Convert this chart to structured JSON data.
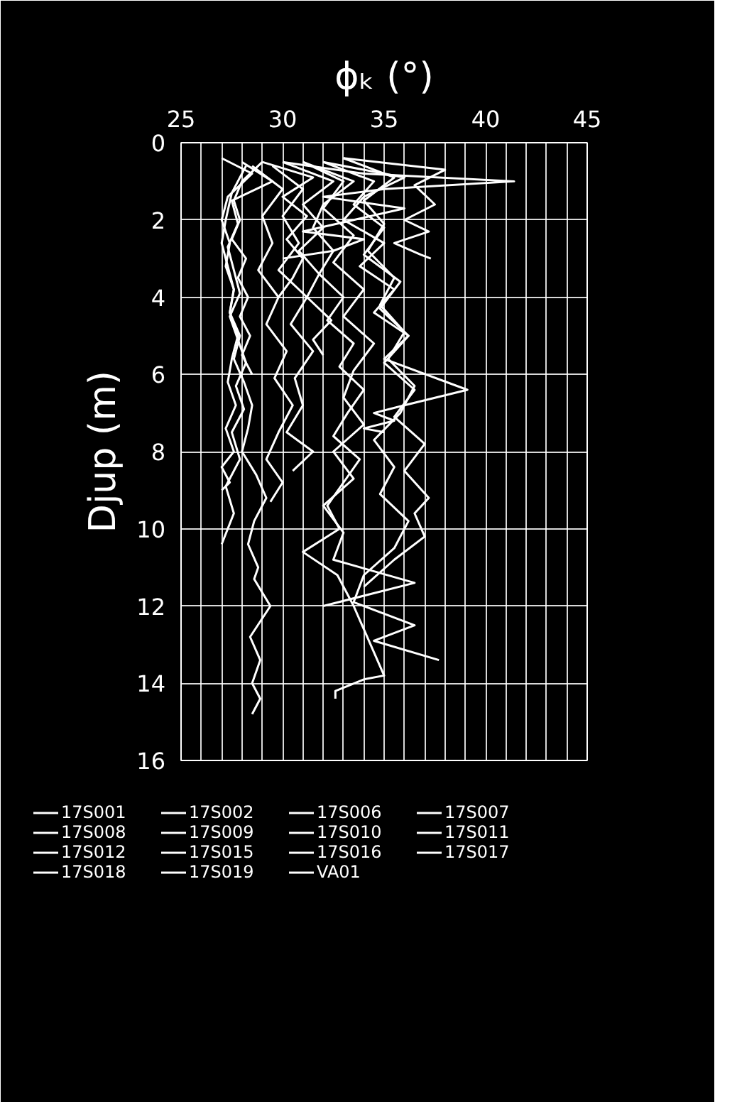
{
  "chart_data": {
    "type": "line",
    "xlabel": "ϕₖ (°)",
    "ylabel": "Djup (m)",
    "xlim": [
      25,
      45
    ],
    "xticks": [
      25,
      {
        "value": 26,
        "label": null
      },
      {
        "value": 27,
        "label": null
      },
      {
        "value": 28,
        "label": null
      },
      {
        "value": 29,
        "label": null
      },
      30,
      {
        "value": 31,
        "label": null
      },
      {
        "value": 32,
        "label": null
      },
      {
        "value": 33,
        "label": null
      },
      {
        "value": 34,
        "label": null
      },
      35,
      {
        "value": 36,
        "label": null
      },
      {
        "value": 37,
        "label": null
      },
      {
        "value": 38,
        "label": null
      },
      {
        "value": 39,
        "label": null
      },
      40,
      {
        "value": 41,
        "label": null
      },
      {
        "value": 42,
        "label": null
      },
      {
        "value": 43,
        "label": null
      },
      {
        "value": 44,
        "label": null
      },
      45
    ],
    "ylim": [
      16,
      0
    ],
    "yticks": [
      0,
      2,
      4,
      6,
      8,
      10,
      12,
      14,
      16
    ],
    "grid": true,
    "legend": "bottom",
    "line_style": "solid",
    "series": [
      {
        "name": "17S001",
        "color": "#ffffff",
        "x": [
          27.0,
          28.5,
          27.3,
          27.0,
          27.4,
          27.2,
          27.6,
          27.4,
          27.8,
          27.5,
          27.3,
          27.7,
          27.2,
          27.6,
          27.0,
          27.4,
          27.0
        ],
        "values": [
          0.4,
          0.8,
          1.4,
          2.0,
          2.6,
          3.2,
          3.8,
          4.4,
          5.0,
          5.6,
          6.2,
          6.8,
          7.4,
          8.0,
          8.4,
          8.8,
          9.0
        ]
      },
      {
        "name": "17S002",
        "color": "#ffffff",
        "x": [
          28.0,
          29.5,
          27.5,
          27.8,
          27.3,
          27.6,
          27.9,
          27.4,
          27.8,
          28.2,
          27.7,
          28.1,
          27.5,
          27.9,
          27.2,
          27.6,
          27.0
        ],
        "values": [
          0.5,
          1.0,
          1.5,
          2.1,
          2.7,
          3.3,
          3.9,
          4.5,
          5.1,
          5.7,
          6.3,
          6.9,
          7.5,
          8.2,
          8.9,
          9.6,
          10.4
        ]
      },
      {
        "name": "17S006",
        "color": "#ffffff",
        "x": [
          28.2,
          27.5,
          27.2,
          27.0,
          27.3,
          27.6,
          27.4,
          27.9,
          27.6,
          28.1,
          28.5,
          28.3,
          28.0,
          28.7,
          29.2,
          28.6,
          28.3,
          28.8,
          28.6,
          29.4,
          28.4,
          28.9,
          28.5,
          28.9,
          28.5
        ],
        "values": [
          0.6,
          1.3,
          2.0,
          2.6,
          3.2,
          3.8,
          4.4,
          5.0,
          5.6,
          6.2,
          6.8,
          7.4,
          8.0,
          8.6,
          9.2,
          9.8,
          10.4,
          11.0,
          11.3,
          12.0,
          12.8,
          13.4,
          14.0,
          14.4,
          14.8
        ]
      },
      {
        "name": "17S007",
        "color": "#ffffff",
        "x": [
          31.0,
          33.5,
          32.0,
          31.5,
          32.5,
          31.8,
          33.0,
          32.2,
          33.5,
          32.8,
          34.0,
          33.2,
          32.5,
          33.8,
          33.0,
          32.2,
          32.8,
          31.0,
          32.7,
          33.5,
          35.0,
          34.0,
          32.6,
          32.6
        ],
        "values": [
          0.5,
          1.0,
          1.6,
          2.2,
          2.8,
          3.4,
          4.0,
          4.6,
          5.2,
          5.8,
          6.4,
          7.0,
          7.6,
          8.2,
          8.8,
          9.4,
          10.0,
          10.6,
          11.2,
          12.0,
          13.8,
          13.9,
          14.2,
          14.4
        ]
      },
      {
        "name": "17S008",
        "color": "#ffffff",
        "x": [
          33.0,
          35.5,
          34.0,
          35.0,
          34.2,
          35.5,
          34.8,
          36.0,
          35.2,
          36.5,
          35.8,
          34.5,
          35.5,
          34.8,
          36.2,
          35.5,
          34.0,
          33.5,
          36.5,
          34.5,
          37.7
        ],
        "values": [
          0.4,
          0.9,
          1.5,
          2.1,
          2.8,
          3.5,
          4.2,
          4.9,
          5.6,
          6.3,
          7.0,
          7.7,
          8.4,
          9.1,
          9.8,
          10.5,
          11.2,
          11.9,
          12.5,
          12.9,
          13.4
        ]
      },
      {
        "name": "17S009",
        "color": "#ffffff",
        "x": [
          30.0,
          34.0,
          41.4,
          35.0,
          32.0,
          36.0,
          33.5,
          31.0,
          34.0,
          32.5,
          30.0
        ],
        "values": [
          0.5,
          0.8,
          1.0,
          1.2,
          1.4,
          1.7,
          2.0,
          2.3,
          2.5,
          2.8,
          3.0
        ]
      },
      {
        "name": "17S010",
        "color": "#ffffff",
        "x": [
          33.0,
          38.0,
          36.5,
          37.5,
          36.0,
          37.2,
          35.5,
          36.8,
          37.3
        ],
        "values": [
          0.4,
          0.7,
          1.1,
          1.6,
          2.0,
          2.3,
          2.6,
          2.9,
          3.0
        ]
      },
      {
        "name": "17S011",
        "color": "#ffffff",
        "x": [
          29.0,
          28.0,
          27.6,
          27.9,
          27.5,
          28.2,
          27.8,
          28.3,
          27.9,
          28.4,
          28.0,
          28.5
        ],
        "values": [
          0.5,
          1.0,
          1.5,
          2.0,
          2.5,
          3.0,
          3.5,
          4.0,
          4.5,
          5.0,
          5.5,
          6.0
        ]
      },
      {
        "name": "17S012",
        "color": "#ffffff",
        "x": [
          32.0,
          36.0,
          34.0,
          33.0,
          35.0,
          33.8,
          35.5,
          34.5,
          36.2,
          35.0,
          39.1,
          36.0,
          34.5,
          35.5,
          34.0,
          35.0
        ],
        "values": [
          0.5,
          0.9,
          1.4,
          2.0,
          2.6,
          3.2,
          3.8,
          4.4,
          5.0,
          5.6,
          6.4,
          6.8,
          7.0,
          7.2,
          7.4,
          7.5
        ]
      },
      {
        "name": "17S015",
        "color": "#ffffff",
        "x": [
          28.5,
          30.0,
          29.0,
          29.5,
          28.8,
          29.8,
          29.2,
          30.2,
          29.6,
          30.5,
          29.8,
          29.2,
          30.0,
          29.4
        ],
        "values": [
          0.6,
          1.2,
          1.9,
          2.6,
          3.3,
          4.0,
          4.7,
          5.4,
          6.1,
          6.8,
          7.5,
          8.2,
          8.8,
          9.3
        ]
      },
      {
        "name": "17S016",
        "color": "#ffffff",
        "x": [
          32.0,
          34.5,
          33.5,
          35.0,
          34.0,
          35.8,
          34.8,
          36.2,
          35.0,
          36.5,
          35.5,
          37.0,
          36.0,
          37.2,
          36.5,
          37.0,
          35.5,
          34.0
        ],
        "values": [
          0.5,
          1.0,
          1.6,
          2.2,
          2.9,
          3.6,
          4.3,
          5.0,
          5.7,
          6.4,
          7.1,
          7.8,
          8.5,
          9.2,
          9.6,
          10.2,
          10.8,
          11.5
        ]
      },
      {
        "name": "17S017",
        "color": "#ffffff",
        "x": [
          29.5,
          31.0,
          30.0,
          30.8,
          29.8,
          31.2,
          30.4,
          31.5,
          30.6,
          31.0,
          30.2,
          31.5,
          30.5
        ],
        "values": [
          0.6,
          1.2,
          1.9,
          2.6,
          3.3,
          4.0,
          4.7,
          5.4,
          6.1,
          6.8,
          7.5,
          8.0,
          8.5
        ]
      },
      {
        "name": "17S018",
        "color": "#ffffff",
        "x": [
          30.0,
          32.5,
          31.0,
          32.0,
          30.8,
          31.8,
          31.2,
          32.4,
          31.5,
          32.0
        ],
        "values": [
          0.5,
          1.0,
          1.6,
          2.2,
          2.8,
          3.4,
          4.0,
          4.6,
          5.1,
          5.5
        ]
      },
      {
        "name": "17S019",
        "color": "#ffffff",
        "x": [
          29.0,
          31.5,
          30.0,
          31.2,
          30.2,
          31.0,
          30.5,
          29.8
        ],
        "values": [
          0.5,
          0.9,
          1.4,
          1.9,
          2.5,
          3.0,
          3.5,
          4.0
        ]
      },
      {
        "name": "VA01",
        "color": "#ffffff",
        "x": [
          31.0,
          33.0,
          32.0,
          33.5,
          32.5,
          34.0,
          33.0,
          34.5,
          33.5,
          33.0,
          34.0,
          32.5,
          33.5,
          32.0,
          33.0,
          32.5,
          36.5,
          32.0
        ],
        "values": [
          0.5,
          1.0,
          1.7,
          2.4,
          3.1,
          3.8,
          4.5,
          5.2,
          5.9,
          6.6,
          7.3,
          8.0,
          8.7,
          9.4,
          10.1,
          10.8,
          11.4,
          12.0
        ]
      }
    ]
  }
}
